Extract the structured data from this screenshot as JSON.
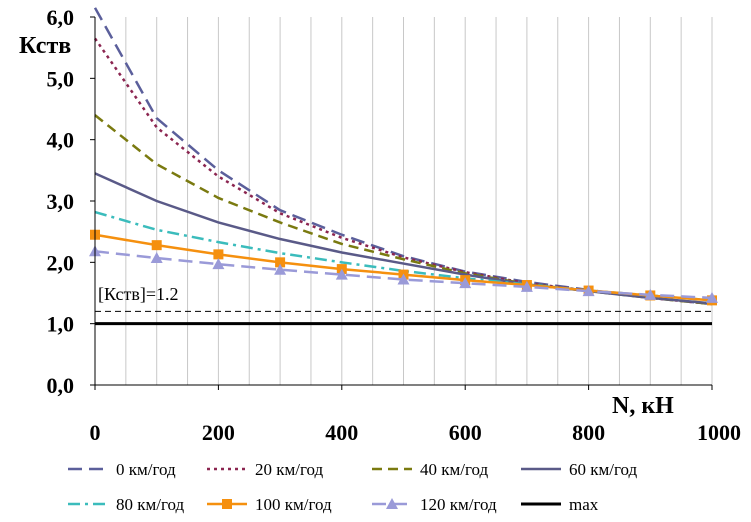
{
  "chart_data": {
    "type": "line",
    "title": "",
    "xlabel": "N, кН",
    "ylabel": "Кств",
    "xlim": [
      0,
      1000
    ],
    "ylim": [
      0,
      6
    ],
    "x_ticks": [
      "0",
      "200",
      "400",
      "600",
      "800",
      "1000"
    ],
    "y_ticks": [
      "0,0",
      "1,0",
      "2,0",
      "3,0",
      "4,0",
      "5,0",
      "6,0"
    ],
    "grid": true,
    "legend_position": "bottom",
    "x": [
      0,
      100,
      200,
      300,
      400,
      500,
      600,
      700,
      800,
      900,
      1000
    ],
    "series": [
      {
        "name": "0 км/год",
        "color": "#5b5f9b",
        "style": "dash-long",
        "values": [
          6.15,
          4.35,
          3.5,
          2.85,
          2.45,
          2.1,
          1.85,
          1.68,
          1.55,
          1.42,
          1.32
        ]
      },
      {
        "name": "20 км/год",
        "color": "#8b2550",
        "style": "dot",
        "values": [
          5.65,
          4.2,
          3.4,
          2.8,
          2.4,
          2.08,
          1.84,
          1.66,
          1.54,
          1.42,
          1.32
        ]
      },
      {
        "name": "40 км/год",
        "color": "#7a7a10",
        "style": "dash",
        "values": [
          4.4,
          3.6,
          3.05,
          2.65,
          2.3,
          2.05,
          1.82,
          1.65,
          1.53,
          1.42,
          1.32
        ]
      },
      {
        "name": "60 км/год",
        "color": "#5a5a88",
        "style": "solid",
        "values": [
          3.45,
          3.0,
          2.65,
          2.38,
          2.16,
          1.98,
          1.8,
          1.64,
          1.53,
          1.42,
          1.33
        ]
      },
      {
        "name": "80 км/год",
        "color": "#3bbcbc",
        "style": "dashdot",
        "values": [
          2.82,
          2.53,
          2.33,
          2.15,
          2.0,
          1.86,
          1.74,
          1.64,
          1.54,
          1.46,
          1.38
        ]
      },
      {
        "name": "100 км/год",
        "color": "#f5900f",
        "style": "solid-square",
        "values": [
          2.45,
          2.28,
          2.13,
          2.0,
          1.89,
          1.8,
          1.71,
          1.63,
          1.54,
          1.46,
          1.38
        ]
      },
      {
        "name": "120 км/год",
        "color": "#9a9ad8",
        "style": "dash-triangle",
        "values": [
          2.18,
          2.07,
          1.97,
          1.88,
          1.8,
          1.72,
          1.66,
          1.6,
          1.53,
          1.47,
          1.42
        ]
      },
      {
        "name": "max",
        "color": "#000000",
        "style": "thick",
        "values": [
          1.0,
          1.0,
          1.0,
          1.0,
          1.0,
          1.0,
          1.0,
          1.0,
          1.0,
          1.0,
          1.0
        ]
      }
    ],
    "reference_line": {
      "label": "[Кств]=1.2",
      "value": 1.2
    }
  }
}
